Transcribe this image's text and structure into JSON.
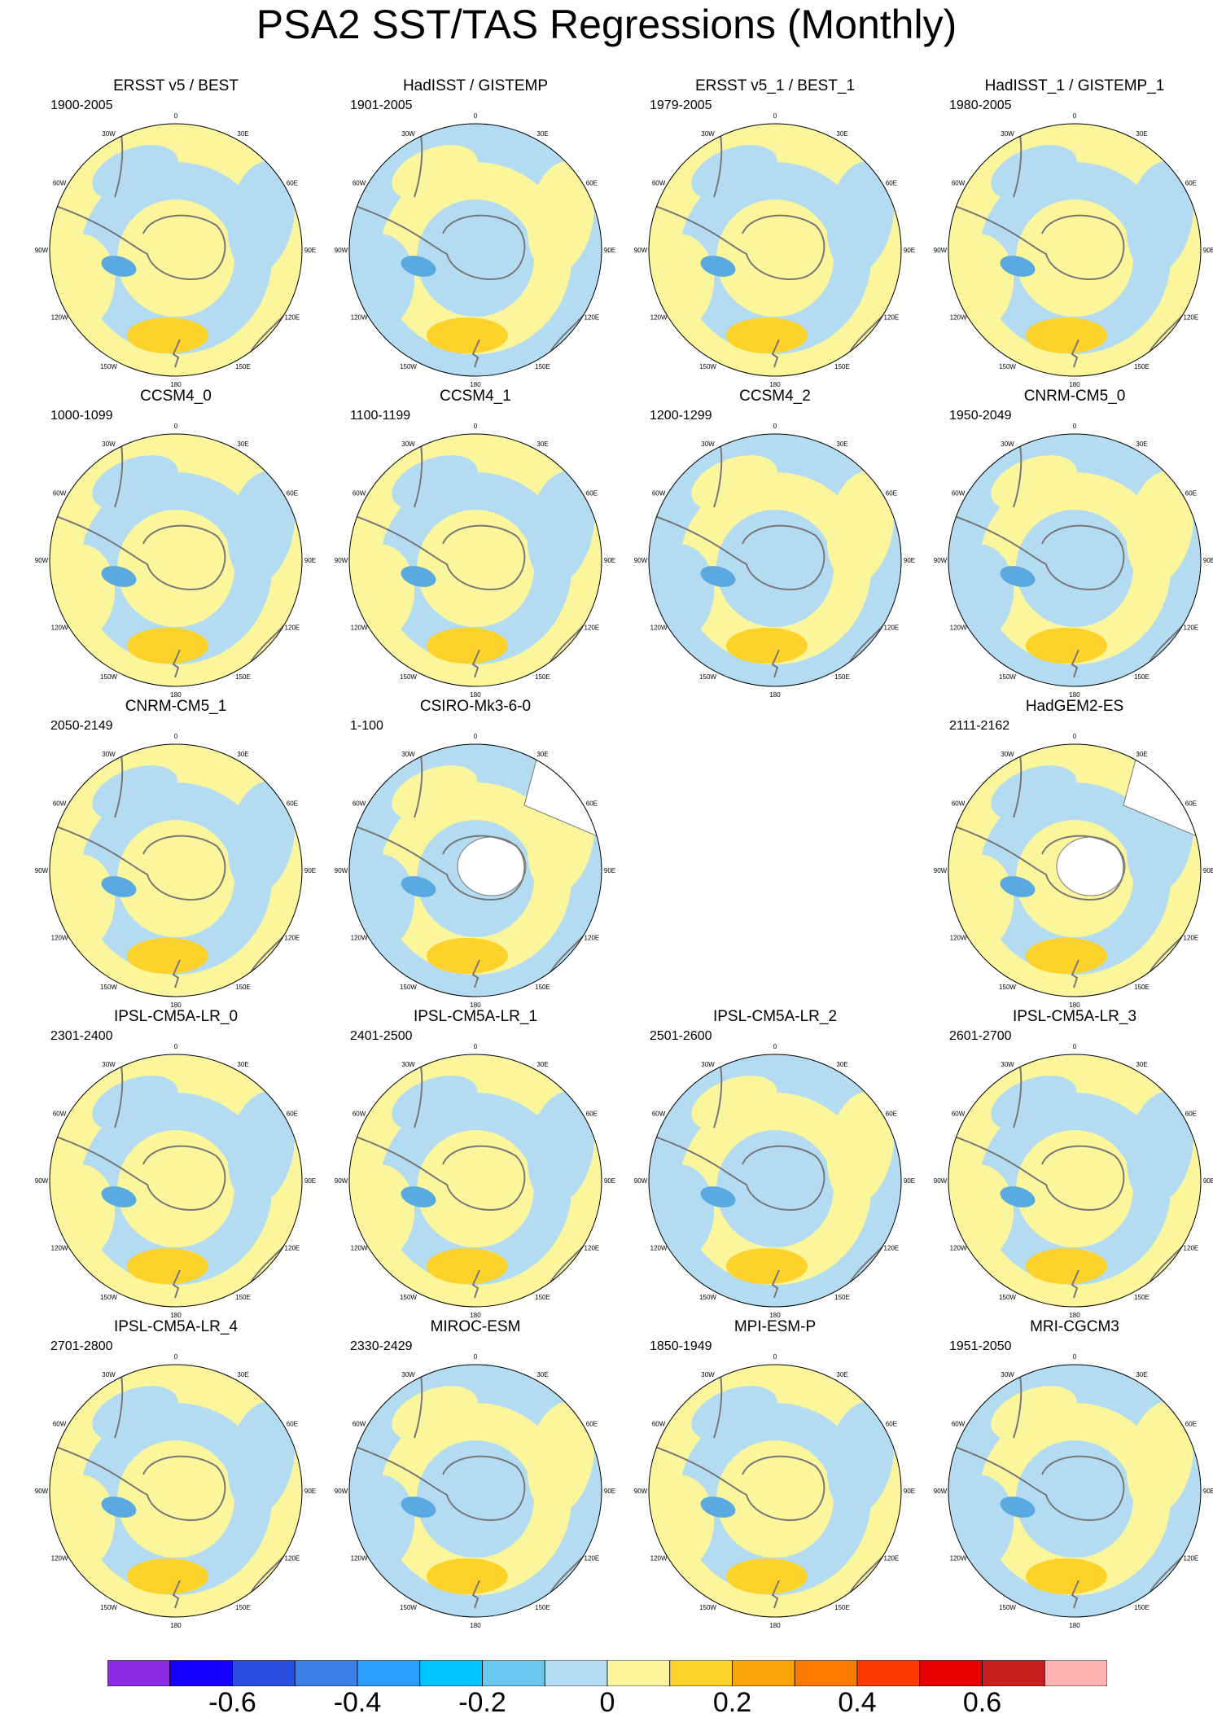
{
  "title": "PSA2 SST/TAS Regressions (Monthly)",
  "longitude_labels": [
    "0",
    "30E",
    "60E",
    "90E",
    "120E",
    "150E",
    "180",
    "150W",
    "120W",
    "90W",
    "60W",
    "30W"
  ],
  "colors": {
    "neg_strong": "#5aa9e0",
    "neg_weak": "#b3dcf2",
    "pos_weak": "#fbf59c",
    "pos_strong": "#fdd22a",
    "land_missing": "#ffffff",
    "coast": "#777777"
  },
  "panels": [
    {
      "title": "ERSST v5 / BEST",
      "period": "1900-2005",
      "pattern": "pos",
      "missing_land": false
    },
    {
      "title": "HadISST / GISTEMP",
      "period": "1901-2005",
      "pattern": "neg",
      "missing_land": false
    },
    {
      "title": "ERSST v5_1 / BEST_1",
      "period": "1979-2005",
      "pattern": "pos",
      "missing_land": false
    },
    {
      "title": "HadISST_1 / GISTEMP_1",
      "period": "1980-2005",
      "pattern": "pos",
      "missing_land": false
    },
    {
      "title": "CCSM4_0",
      "period": "1000-1099",
      "pattern": "pos",
      "missing_land": false
    },
    {
      "title": "CCSM4_1",
      "period": "1100-1199",
      "pattern": "pos",
      "missing_land": false
    },
    {
      "title": "CCSM4_2",
      "period": "1200-1299",
      "pattern": "neg",
      "missing_land": false
    },
    {
      "title": "CNRM-CM5_0",
      "period": "1950-2049",
      "pattern": "neg",
      "missing_land": false
    },
    {
      "title": "CNRM-CM5_1",
      "period": "2050-2149",
      "pattern": "pos",
      "missing_land": false
    },
    {
      "title": "CSIRO-Mk3-6-0",
      "period": "1-100",
      "pattern": "neg",
      "missing_land": true
    },
    null,
    {
      "title": "HadGEM2-ES",
      "period": "2111-2162",
      "pattern": "pos",
      "missing_land": true
    },
    {
      "title": "IPSL-CM5A-LR_0",
      "period": "2301-2400",
      "pattern": "pos",
      "missing_land": false
    },
    {
      "title": "IPSL-CM5A-LR_1",
      "period": "2401-2500",
      "pattern": "pos",
      "missing_land": false
    },
    {
      "title": "IPSL-CM5A-LR_2",
      "period": "2501-2600",
      "pattern": "neg",
      "missing_land": false
    },
    {
      "title": "IPSL-CM5A-LR_3",
      "period": "2601-2700",
      "pattern": "pos",
      "missing_land": false
    },
    {
      "title": "IPSL-CM5A-LR_4",
      "period": "2701-2800",
      "pattern": "pos",
      "missing_land": false
    },
    {
      "title": "MIROC-ESM",
      "period": "2330-2429",
      "pattern": "neg",
      "missing_land": false
    },
    {
      "title": "MPI-ESM-P",
      "period": "1850-1949",
      "pattern": "pos",
      "missing_land": false
    },
    {
      "title": "MRI-CGCM3",
      "period": "1951-2050",
      "pattern": "neg",
      "missing_land": false
    }
  ],
  "colorbar": {
    "colors": [
      "#8a2be2",
      "#1400ff",
      "#2b4de0",
      "#3d7fe9",
      "#2a9dff",
      "#00c3ff",
      "#6cc7f0",
      "#b3dcf2",
      "#fbf59c",
      "#fdd22a",
      "#fba40a",
      "#fd7a00",
      "#ff3a00",
      "#e80000",
      "#c81e1e",
      "#ffb4b4"
    ],
    "labels": [
      "-0.6",
      "-0.4",
      "-0.2",
      "0",
      "0.2",
      "0.4",
      "0.6"
    ]
  }
}
